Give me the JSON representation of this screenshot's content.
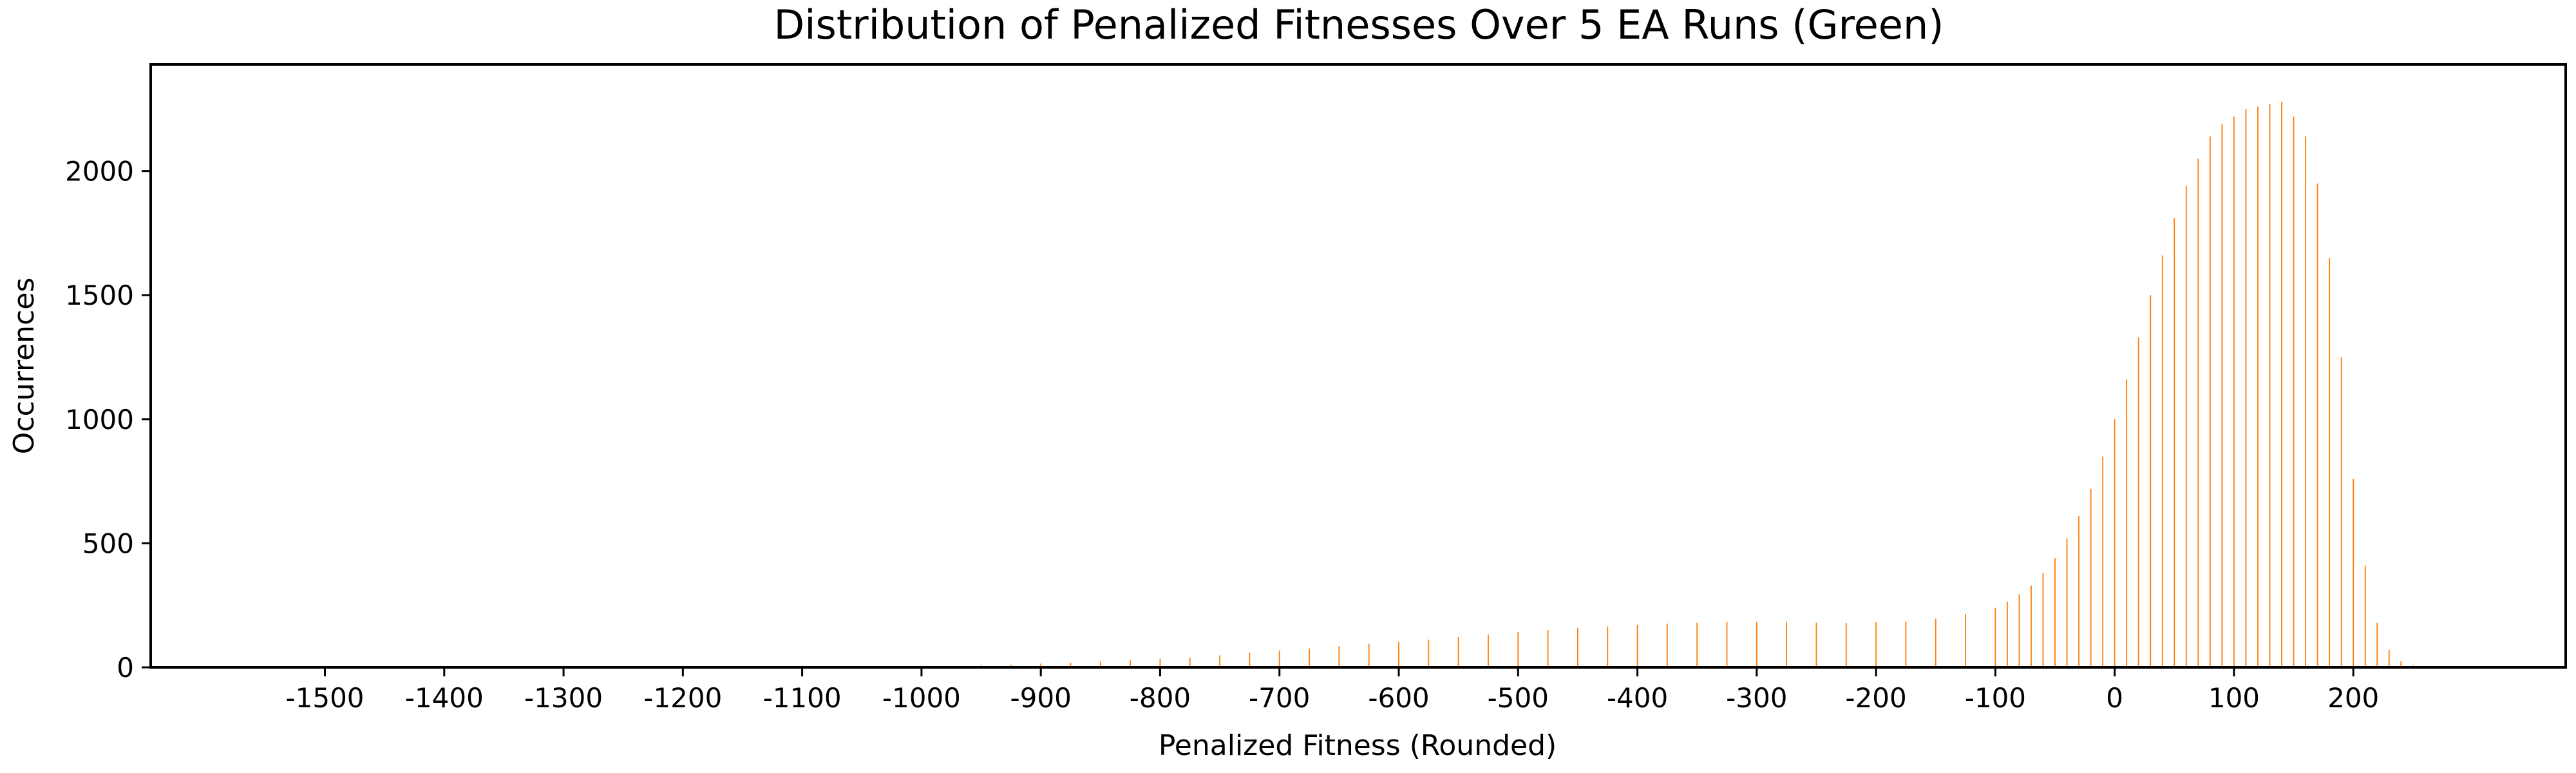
{
  "chart_data": {
    "type": "bar",
    "title": "Distribution of Penalized Fitnesses Over 5 EA Runs (Green)",
    "xlabel": "Penalized Fitness (Rounded)",
    "ylabel": "Occurrences",
    "xlim": [
      -1646,
      378
    ],
    "ylim": [
      0,
      2430
    ],
    "x_ticks": [
      -1500,
      -1400,
      -1300,
      -1200,
      -1100,
      -1000,
      -900,
      -800,
      -700,
      -600,
      -500,
      -400,
      -300,
      -200,
      -100,
      0,
      100,
      200
    ],
    "y_ticks": [
      0,
      500,
      1000,
      1500,
      2000
    ],
    "bar_color": "#ff7f0e",
    "bin_width": 1,
    "grid": false,
    "series": [
      {
        "name": "",
        "x": [
          -1000,
          -975,
          -950,
          -925,
          -900,
          -875,
          -850,
          -825,
          -800,
          -775,
          -750,
          -725,
          -700,
          -675,
          -650,
          -625,
          -600,
          -575,
          -550,
          -525,
          -500,
          -475,
          -450,
          -425,
          -400,
          -375,
          -350,
          -325,
          -300,
          -275,
          -250,
          -225,
          -200,
          -175,
          -150,
          -125,
          -100,
          -90,
          -80,
          -70,
          -60,
          -50,
          -40,
          -30,
          -20,
          -10,
          0,
          10,
          20,
          30,
          40,
          50,
          60,
          70,
          80,
          90,
          100,
          110,
          120,
          130,
          140,
          150,
          160,
          170,
          180,
          190,
          200,
          210,
          220,
          230,
          240,
          250,
          260
        ],
        "values": [
          3,
          5,
          8,
          11,
          15,
          19,
          24,
          28,
          34,
          40,
          48,
          58,
          68,
          76,
          85,
          95,
          103,
          112,
          122,
          133,
          142,
          150,
          158,
          165,
          172,
          176,
          180,
          182,
          183,
          182,
          180,
          179,
          182,
          185,
          196,
          215,
          240,
          265,
          295,
          330,
          380,
          440,
          520,
          610,
          720,
          850,
          1000,
          1160,
          1330,
          1500,
          1660,
          1810,
          1940,
          2050,
          2140,
          2190,
          2220,
          2250,
          2260,
          2270,
          2280,
          2220,
          2140,
          1950,
          1650,
          1250,
          760,
          410,
          180,
          70,
          25,
          8,
          2
        ]
      }
    ]
  }
}
